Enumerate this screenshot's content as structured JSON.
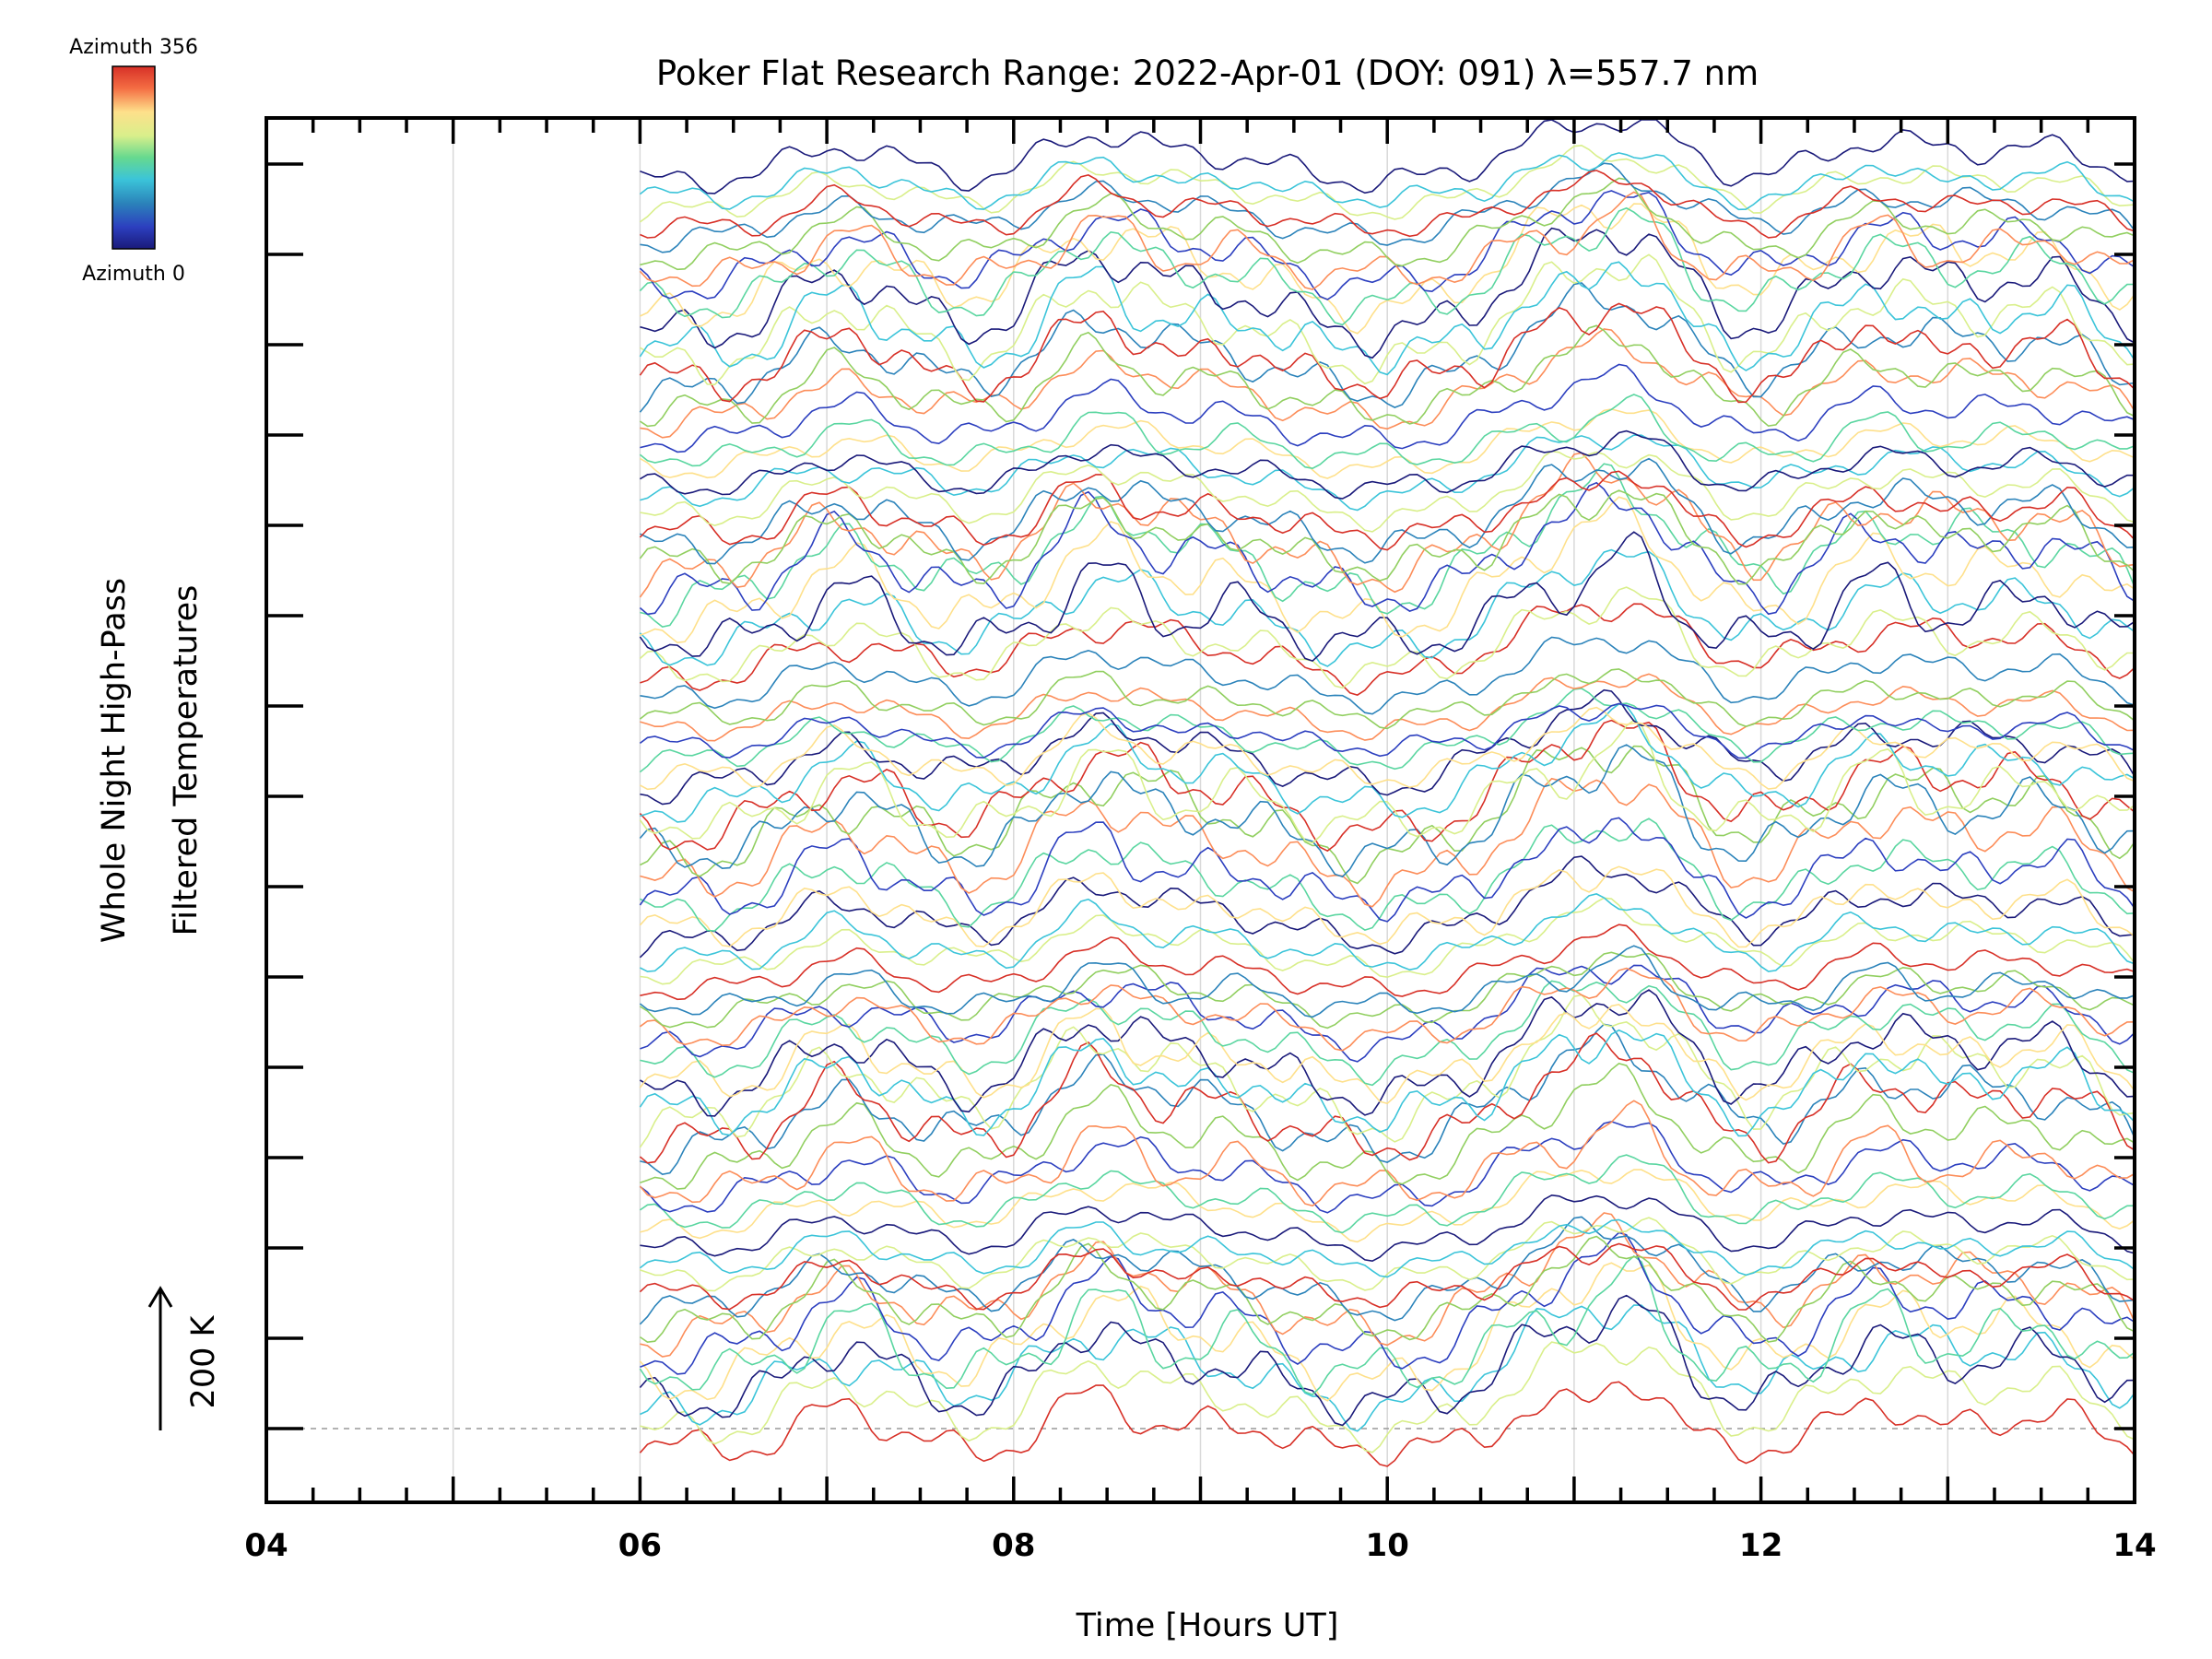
{
  "chart_data": {
    "type": "line",
    "title": "Poker Flat Research Range: 2022-Apr-01 (DOY: 091) λ=557.7 nm",
    "xlabel": "Time [Hours UT]",
    "ylabel_line1": "Whole Night High-Pass",
    "ylabel_line2": "Filtered Temperatures",
    "xlim": [
      4,
      14
    ],
    "x_ticks": [
      "04",
      "06",
      "08",
      "10",
      "12",
      "14"
    ],
    "x_tick_values": [
      4,
      6,
      8,
      10,
      12,
      14
    ],
    "data_start_hour": 6,
    "scale_bar_label": "200 K",
    "colorbar": {
      "top_label": "Azimuth 356",
      "bottom_label": "Azimuth 0",
      "colors": [
        "#d73027",
        "#fc8d59",
        "#fee08b",
        "#d9ef8b",
        "#91cf60",
        "#5ad6a0",
        "#3bc4d9",
        "#2b83ba",
        "#2c3fbf",
        "#1a1a7a"
      ]
    },
    "grid": "vertical",
    "baseline_dashed": true,
    "series_groups": 7,
    "traces_per_group": 12,
    "note_series": "Stacked keograms of filtered temperature perturbations at successive azimuths (0 to 356 deg)"
  },
  "colors": {
    "axis": "#000000",
    "grid": "#d9d9d9",
    "baseline": "#999999"
  }
}
